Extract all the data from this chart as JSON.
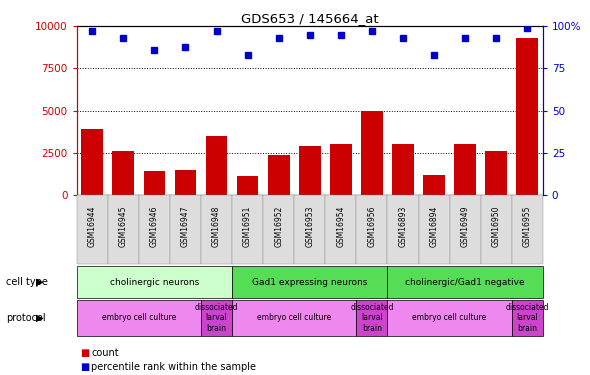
{
  "title": "GDS653 / 145664_at",
  "samples": [
    "GSM16944",
    "GSM16945",
    "GSM16946",
    "GSM16947",
    "GSM16948",
    "GSM16951",
    "GSM16952",
    "GSM16953",
    "GSM16954",
    "GSM16956",
    "GSM16893",
    "GSM16894",
    "GSM16949",
    "GSM16950",
    "GSM16955"
  ],
  "counts": [
    3900,
    2600,
    1400,
    1500,
    3500,
    1100,
    2400,
    2900,
    3000,
    5000,
    3000,
    1200,
    3000,
    2600,
    9300
  ],
  "percentile_ranks": [
    97,
    93,
    86,
    88,
    97,
    83,
    93,
    95,
    95,
    97,
    93,
    83,
    93,
    93,
    99
  ],
  "bar_color": "#cc0000",
  "dot_color": "#0000cc",
  "ylim_left": [
    0,
    10000
  ],
  "ylim_right": [
    0,
    100
  ],
  "yticks_left": [
    0,
    2500,
    5000,
    7500,
    10000
  ],
  "yticks_right": [
    0,
    25,
    50,
    75,
    100
  ],
  "ytick_labels_left": [
    "0",
    "2500",
    "5000",
    "7500",
    "10000"
  ],
  "ytick_labels_right": [
    "0",
    "25",
    "50",
    "75",
    "100%"
  ],
  "cell_type_groups": [
    {
      "label": "cholinergic neurons",
      "start": 0,
      "end": 5,
      "color": "#ccffcc"
    },
    {
      "label": "Gad1 expressing neurons",
      "start": 5,
      "end": 10,
      "color": "#55dd55"
    },
    {
      "label": "cholinergic/Gad1 negative",
      "start": 10,
      "end": 15,
      "color": "#55dd55"
    }
  ],
  "protocol_groups": [
    {
      "label": "embryo cell culture",
      "start": 0,
      "end": 4,
      "color": "#ee88ee"
    },
    {
      "label": "dissociated\nlarval\nbrain",
      "start": 4,
      "end": 5,
      "color": "#dd44dd"
    },
    {
      "label": "embryo cell culture",
      "start": 5,
      "end": 9,
      "color": "#ee88ee"
    },
    {
      "label": "dissociated\nlarval\nbrain",
      "start": 9,
      "end": 10,
      "color": "#dd44dd"
    },
    {
      "label": "embryo cell culture",
      "start": 10,
      "end": 14,
      "color": "#ee88ee"
    },
    {
      "label": "dissociated\nlarval\nbrain",
      "start": 14,
      "end": 15,
      "color": "#dd44dd"
    }
  ],
  "legend_count_color": "#cc0000",
  "legend_pct_color": "#0000cc",
  "bg_color": "#ffffff",
  "grid_color": "#555555",
  "left_axis_color": "#cc0000",
  "right_axis_color": "#0000cc",
  "xtick_bg": "#dddddd"
}
